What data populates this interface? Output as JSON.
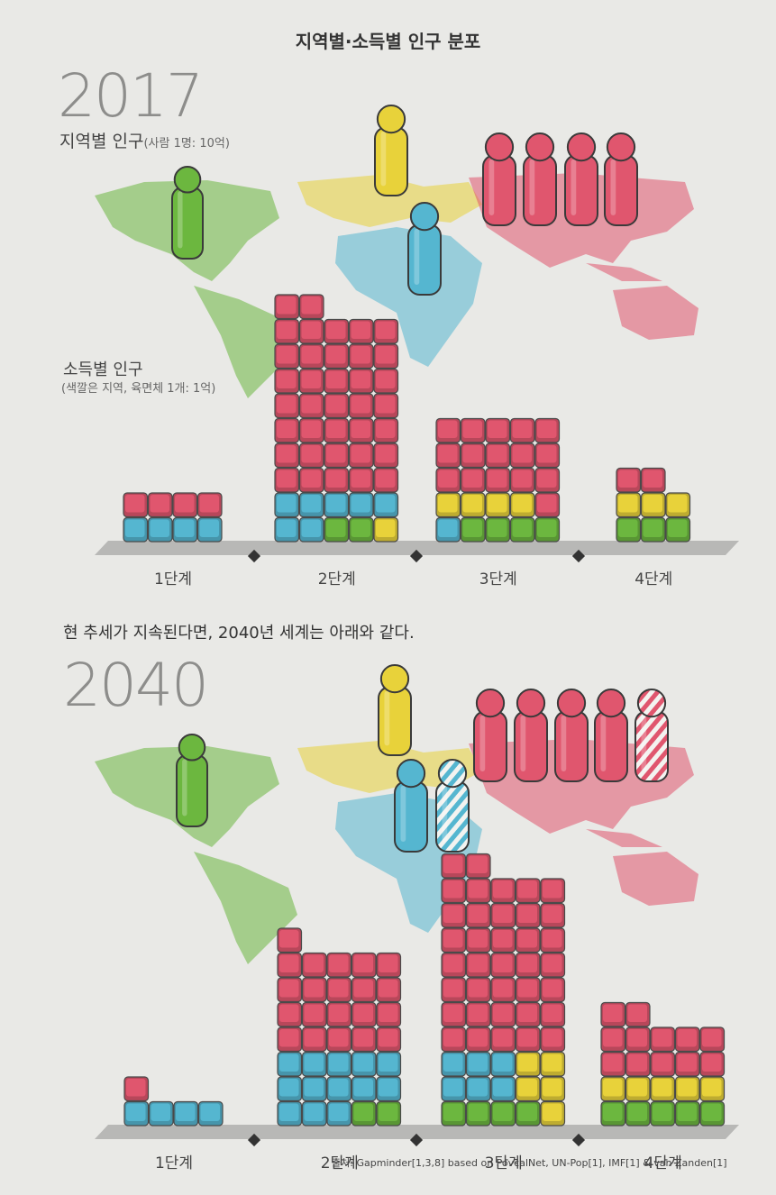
{
  "title": "지역별·소득별 인구 분포",
  "section_2017": {
    "year": "2017",
    "map_label": "지역별 인구",
    "map_label_note": "(사람 1명: 10억)",
    "income_label": "소득별 인구",
    "income_note": "(색깔은 지역, 육면체 1개: 1억)"
  },
  "trend_text": "현 추세가 지속된다면, 2040년 세계는 아래와 같다.",
  "section_2040": {
    "year": "2040"
  },
  "source": "출처: Gapminder[1,3,8] based on PovcalNet, UN-Pop[1], IMF[1] & van Zanden[1]",
  "colors": {
    "americas": "#6cb73f",
    "europe": "#e8d23a",
    "africa": "#55b6d0",
    "asia": "#e0566e"
  },
  "chart_data": [
    {
      "type": "bar",
      "title": "소득별 인구 2017",
      "categories": [
        "1단계",
        "2단계",
        "3단계",
        "4단계"
      ],
      "units": "육면체 1개: 1억",
      "columns_per_level": [
        [
          [
            "africa",
            "asia"
          ],
          [
            "africa",
            "asia"
          ],
          [
            "africa",
            "asia"
          ],
          [
            "africa",
            "asia"
          ]
        ],
        [
          [
            "africa",
            "africa",
            "asia",
            "asia",
            "asia",
            "asia",
            "asia",
            "asia",
            "asia",
            "asia"
          ],
          [
            "africa",
            "africa",
            "asia",
            "asia",
            "asia",
            "asia",
            "asia",
            "asia",
            "asia",
            "asia"
          ],
          [
            "americas",
            "africa",
            "asia",
            "asia",
            "asia",
            "asia",
            "asia",
            "asia",
            "asia"
          ],
          [
            "americas",
            "africa",
            "asia",
            "asia",
            "asia",
            "asia",
            "asia",
            "asia",
            "asia"
          ],
          [
            "europe",
            "africa",
            "asia",
            "asia",
            "asia",
            "asia",
            "asia",
            "asia",
            "asia"
          ]
        ],
        [
          [
            "africa",
            "europe",
            "asia",
            "asia",
            "asia"
          ],
          [
            "americas",
            "europe",
            "asia",
            "asia",
            "asia"
          ],
          [
            "americas",
            "europe",
            "asia",
            "asia",
            "asia"
          ],
          [
            "americas",
            "europe",
            "asia",
            "asia",
            "asia"
          ],
          [
            "americas",
            "asia",
            "asia",
            "asia",
            "asia"
          ]
        ],
        [
          [
            "americas",
            "europe",
            "asia"
          ],
          [
            "americas",
            "europe",
            "asia"
          ],
          [
            "americas",
            "europe"
          ]
        ]
      ]
    },
    {
      "type": "bar",
      "title": "소득별 인구 2040",
      "categories": [
        "1단계",
        "2단계",
        "3단계",
        "4단계"
      ],
      "units": "육면체 1개: 1억",
      "columns_per_level": [
        [
          [
            "africa",
            "asia"
          ],
          [
            "africa"
          ],
          [
            "africa"
          ],
          [
            "africa"
          ]
        ],
        [
          [
            "africa",
            "africa",
            "africa",
            "asia",
            "asia",
            "asia",
            "asia",
            "asia"
          ],
          [
            "africa",
            "africa",
            "africa",
            "asia",
            "asia",
            "asia",
            "asia"
          ],
          [
            "africa",
            "africa",
            "africa",
            "asia",
            "asia",
            "asia",
            "asia"
          ],
          [
            "americas",
            "africa",
            "africa",
            "asia",
            "asia",
            "asia",
            "asia"
          ],
          [
            "americas",
            "africa",
            "africa",
            "asia",
            "asia",
            "asia",
            "asia"
          ]
        ],
        [
          [
            "americas",
            "africa",
            "africa",
            "asia",
            "asia",
            "asia",
            "asia",
            "asia",
            "asia",
            "asia",
            "asia"
          ],
          [
            "americas",
            "africa",
            "africa",
            "asia",
            "asia",
            "asia",
            "asia",
            "asia",
            "asia",
            "asia",
            "asia"
          ],
          [
            "americas",
            "africa",
            "africa",
            "asia",
            "asia",
            "asia",
            "asia",
            "asia",
            "asia",
            "asia"
          ],
          [
            "americas",
            "europe",
            "europe",
            "asia",
            "asia",
            "asia",
            "asia",
            "asia",
            "asia",
            "asia"
          ],
          [
            "europe",
            "europe",
            "europe",
            "asia",
            "asia",
            "asia",
            "asia",
            "asia",
            "asia",
            "asia"
          ]
        ],
        [
          [
            "americas",
            "europe",
            "asia",
            "asia",
            "asia"
          ],
          [
            "americas",
            "europe",
            "asia",
            "asia",
            "asia"
          ],
          [
            "americas",
            "europe",
            "asia",
            "asia"
          ],
          [
            "americas",
            "europe",
            "asia",
            "asia"
          ],
          [
            "americas",
            "europe",
            "asia",
            "asia"
          ]
        ]
      ]
    }
  ],
  "maps": [
    {
      "year": "2017",
      "people": [
        {
          "region": "americas",
          "count": 1
        },
        {
          "region": "europe",
          "count": 1
        },
        {
          "region": "africa",
          "count": 1
        },
        {
          "region": "asia",
          "count": 4
        }
      ]
    },
    {
      "year": "2040",
      "people": [
        {
          "region": "americas",
          "count": 1
        },
        {
          "region": "europe",
          "count": 1
        },
        {
          "region": "africa",
          "count": 2,
          "partial": 1
        },
        {
          "region": "asia",
          "count": 5,
          "partial": 1
        }
      ]
    }
  ]
}
